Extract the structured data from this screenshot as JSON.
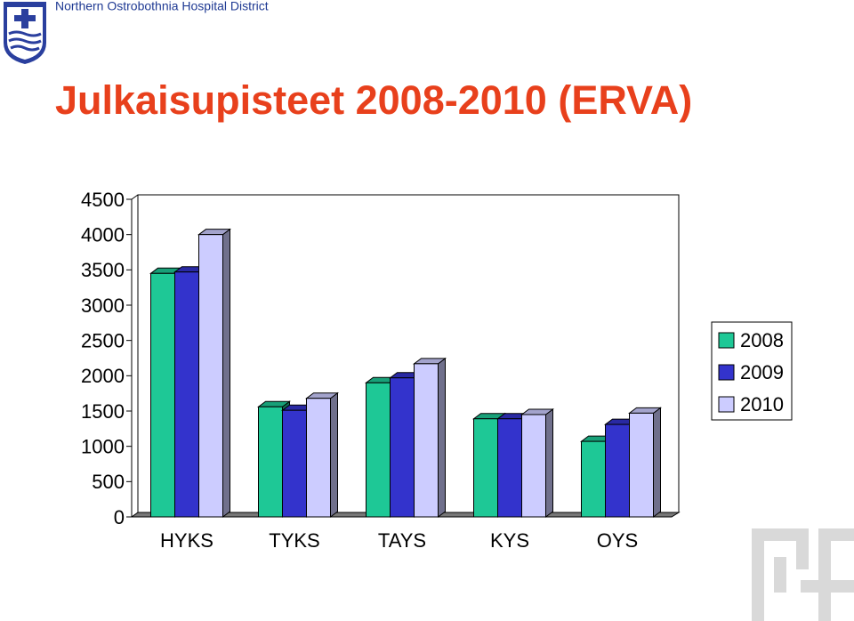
{
  "header": {
    "organization": "Northern Ostrobothnia Hospital District"
  },
  "chart_data": {
    "type": "bar3d",
    "title": "Julkaisupisteet 2008-2010 (ERVA)",
    "categories": [
      "HYKS",
      "TYKS",
      "TAYS",
      "KYS",
      "OYS"
    ],
    "series": [
      {
        "name": "2008",
        "color": "#1ec896",
        "values": [
          3450,
          1560,
          1900,
          1390,
          1070
        ]
      },
      {
        "name": "2009",
        "color": "#3333cc",
        "values": [
          3470,
          1510,
          1970,
          1390,
          1310
        ]
      },
      {
        "name": "2010",
        "color": "#ccccff",
        "values": [
          4000,
          1680,
          2170,
          1450,
          1470
        ]
      }
    ],
    "ylim": [
      0,
      4500
    ],
    "yticks": [
      0,
      500,
      1000,
      1500,
      2000,
      2500,
      3000,
      3500,
      4000,
      4500
    ],
    "legend": "right"
  }
}
